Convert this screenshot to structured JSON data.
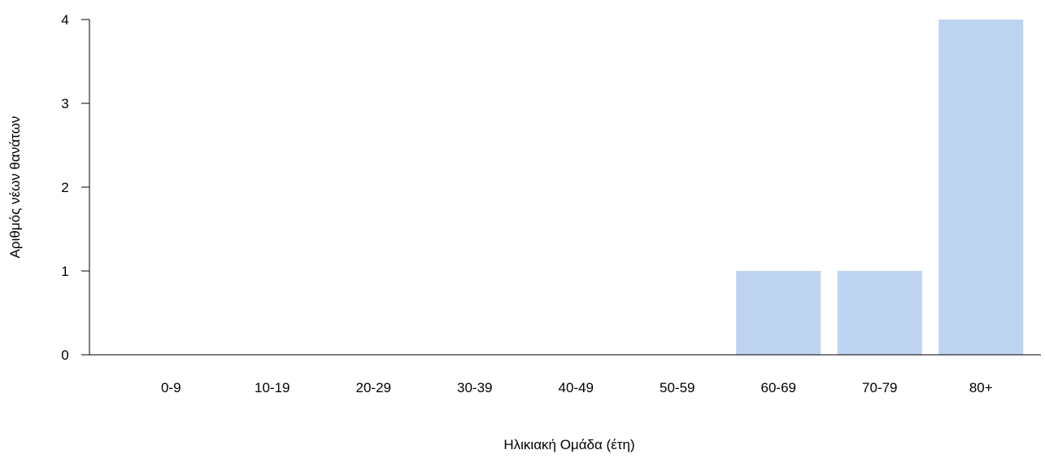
{
  "chart_data": {
    "type": "bar",
    "title": "",
    "xlabel": "Ηλικιακή Ομάδα (έτη)",
    "ylabel": "Αριθμός νέων θανάτων",
    "categories": [
      "0-9",
      "10-19",
      "20-29",
      "30-39",
      "40-49",
      "50-59",
      "60-69",
      "70-79",
      "80+"
    ],
    "values": [
      0,
      0,
      0,
      0,
      0,
      0,
      1,
      1,
      4
    ],
    "ylim": [
      0,
      4
    ],
    "yticks": [
      "0",
      "1",
      "2",
      "3",
      "4"
    ],
    "grid": false,
    "colors": {
      "bar": "#bed3ef",
      "axis": "#000000"
    }
  }
}
